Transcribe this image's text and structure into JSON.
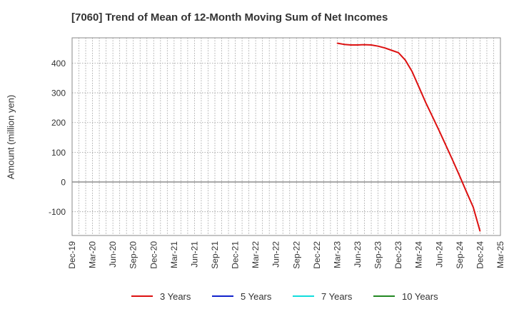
{
  "chart_data": {
    "type": "line",
    "title": "[7060]  Trend of Mean of 12-Month Moving Sum of Net Incomes",
    "ylabel": "Amount (million yen)",
    "xlabel": "",
    "ylim": [
      -180,
      485
    ],
    "yticks": [
      -100,
      0,
      100,
      200,
      300,
      400
    ],
    "xticks": [
      "Dec-19",
      "Mar-20",
      "Jun-20",
      "Sep-20",
      "Dec-20",
      "Mar-21",
      "Jun-21",
      "Sep-21",
      "Dec-21",
      "Mar-22",
      "Jun-22",
      "Sep-22",
      "Dec-22",
      "Mar-23",
      "Jun-23",
      "Sep-23",
      "Dec-23",
      "Mar-24",
      "Jun-24",
      "Sep-24",
      "Dec-24",
      "Mar-25"
    ],
    "grid": true,
    "legend_position": "bottom",
    "series": [
      {
        "name": "3 Years",
        "color": "#dd1111",
        "points": [
          [
            "Mar-23",
            467
          ],
          [
            "Apr-23",
            463
          ],
          [
            "May-23",
            461
          ],
          [
            "Jun-23",
            461
          ],
          [
            "Jul-23",
            462
          ],
          [
            "Aug-23",
            461
          ],
          [
            "Sep-23",
            457
          ],
          [
            "Oct-23",
            451
          ],
          [
            "Nov-23",
            443
          ],
          [
            "Dec-23",
            435
          ],
          [
            "Jan-24",
            410
          ],
          [
            "Feb-24",
            372
          ],
          [
            "Mar-24",
            320
          ],
          [
            "Apr-24",
            268
          ],
          [
            "May-24",
            220
          ],
          [
            "Jun-24",
            172
          ],
          [
            "Jul-24",
            122
          ],
          [
            "Aug-24",
            72
          ],
          [
            "Sep-24",
            20
          ],
          [
            "Oct-24",
            -33
          ],
          [
            "Nov-24",
            -85
          ],
          [
            "Dec-24",
            -165
          ]
        ]
      },
      {
        "name": "5 Years",
        "color": "#1122cc",
        "points": []
      },
      {
        "name": "7 Years",
        "color": "#11dddd",
        "points": []
      },
      {
        "name": "10 Years",
        "color": "#228822",
        "points": []
      }
    ]
  }
}
